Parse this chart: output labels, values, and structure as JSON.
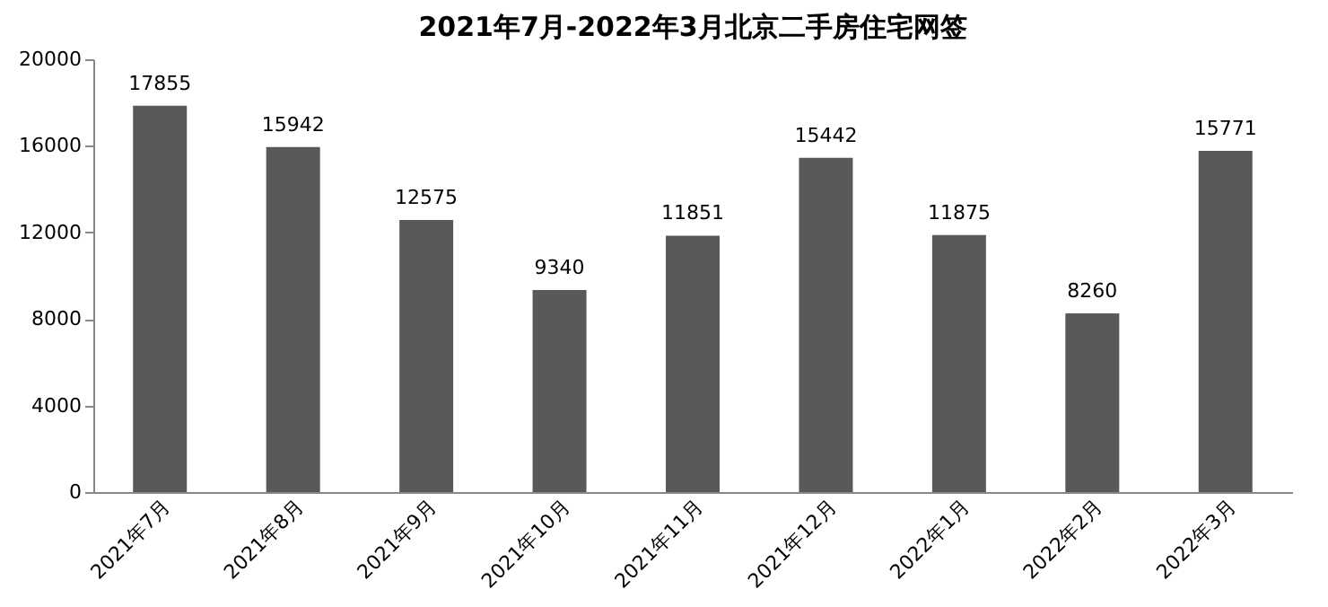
{
  "chart_data": {
    "type": "bar",
    "title": "2021年7月-2022年3月北京二手房住宅网签",
    "categories": [
      "2021年7月",
      "2021年8月",
      "2021年9月",
      "2021年10月",
      "2021年11月",
      "2021年12月",
      "2022年1月",
      "2022年2月",
      "2022年3月"
    ],
    "values": [
      17855,
      15942,
      12575,
      9340,
      11851,
      15442,
      11875,
      8260,
      15771
    ],
    "color": "#595959",
    "ylim": [
      0,
      20000
    ],
    "yticks": [
      0,
      4000,
      8000,
      12000,
      16000,
      20000
    ],
    "data_labels": true,
    "grid": false
  }
}
